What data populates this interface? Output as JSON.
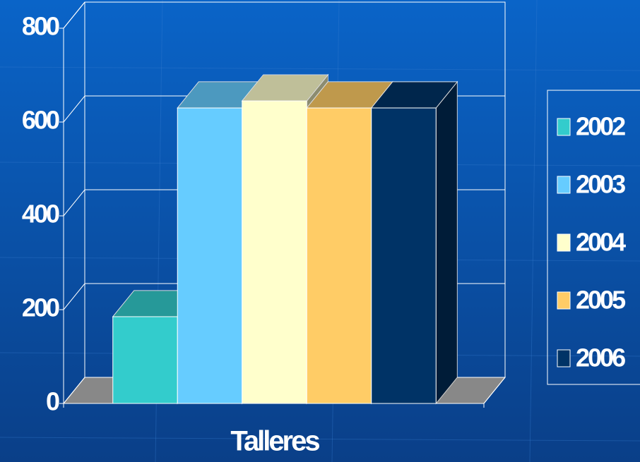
{
  "chart_data": {
    "type": "bar3d",
    "categories": [
      "Talleres"
    ],
    "series": [
      {
        "name": "2002",
        "color": "#33cccc",
        "values": [
          185
        ]
      },
      {
        "name": "2003",
        "color": "#66ccff",
        "values": [
          630
        ]
      },
      {
        "name": "2004",
        "color": "#ffffcc",
        "values": [
          645
        ]
      },
      {
        "name": "2005",
        "color": "#ffcc66",
        "values": [
          630
        ]
      },
      {
        "name": "2006",
        "color": "#003366",
        "values": [
          630
        ]
      }
    ],
    "ylim": [
      0,
      800
    ],
    "yticks": [
      0,
      200,
      400,
      600,
      800
    ],
    "grid": true
  }
}
